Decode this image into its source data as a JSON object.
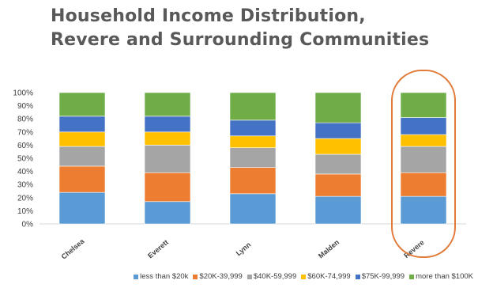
{
  "title": {
    "line1": "Household Income Distribution,",
    "line2": "Revere and Surrounding Communities"
  },
  "highlight_color": "#E07B39",
  "chart_data": {
    "type": "bar",
    "stacked": true,
    "percent": true,
    "categories": [
      "Chelsea",
      "Everett",
      "Lynn",
      "Malden",
      "Revere"
    ],
    "highlighted_category": "Revere",
    "ylim": [
      0,
      100
    ],
    "yticks": [
      "0%",
      "10%",
      "20%",
      "30%",
      "40%",
      "50%",
      "60%",
      "70%",
      "80%",
      "90%",
      "100%"
    ],
    "grid": false,
    "legend_position": "bottom",
    "series": [
      {
        "name": "less than $20k",
        "color": "#5B9BD5",
        "values": [
          24,
          17,
          23,
          21,
          21
        ]
      },
      {
        "name": "$20K-39,999",
        "color": "#ED7D31",
        "values": [
          20,
          22,
          20,
          17,
          18
        ]
      },
      {
        "name": "$40K-59,999",
        "color": "#A5A5A5",
        "values": [
          15,
          21,
          15,
          15,
          20
        ]
      },
      {
        "name": "$60K-74,999",
        "color": "#FFC000",
        "values": [
          11,
          10,
          9,
          12,
          9
        ]
      },
      {
        "name": "$75K-99,999",
        "color": "#4472C4",
        "values": [
          12,
          12,
          12,
          12,
          13
        ]
      },
      {
        "name": "more than $100K",
        "color": "#70AD47",
        "values": [
          18,
          18,
          21,
          23,
          19
        ]
      }
    ]
  }
}
